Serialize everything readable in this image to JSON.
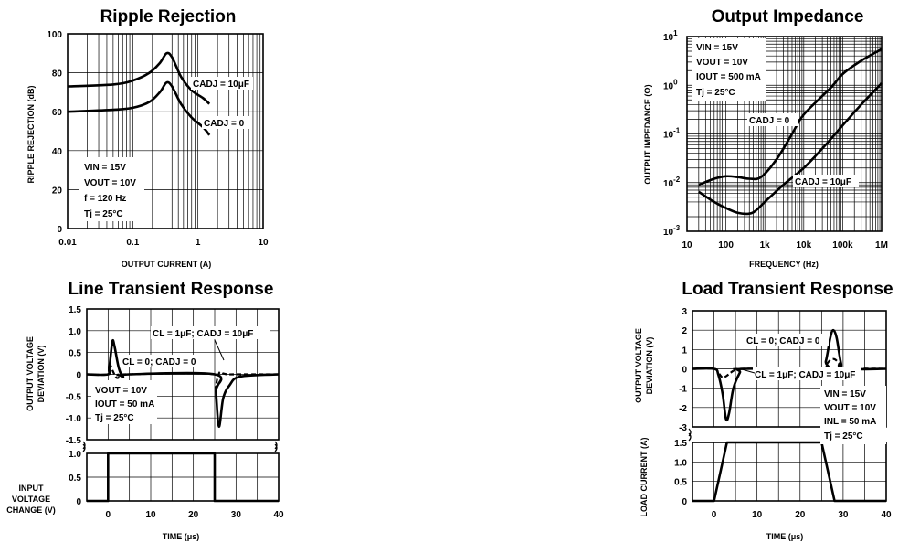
{
  "chart_data": [
    {
      "id": "ripple",
      "type": "line",
      "title": "Ripple Rejection",
      "xlabel": "OUTPUT CURRENT (A)",
      "ylabel": "RIPPLE REJECTION (dB)",
      "xscale": "log",
      "xlim": [
        0.01,
        10
      ],
      "ylim": [
        0,
        100
      ],
      "xticks": [
        "0.01",
        "0.1",
        "1",
        "10"
      ],
      "yticks": [
        "0",
        "20",
        "40",
        "60",
        "80",
        "100"
      ],
      "grid": true,
      "series": [
        {
          "name": "CADJ = 10μF",
          "x": [
            0.01,
            0.05,
            0.1,
            0.18,
            0.26,
            0.33,
            0.4,
            0.55,
            0.8,
            1.2,
            1.5
          ],
          "y": [
            73,
            74,
            76,
            80,
            85,
            90,
            88,
            78,
            71,
            67,
            64
          ]
        },
        {
          "name": "CADJ = 0",
          "x": [
            0.01,
            0.05,
            0.1,
            0.18,
            0.26,
            0.33,
            0.4,
            0.55,
            0.8,
            1.2,
            1.5
          ],
          "y": [
            60,
            61,
            62,
            65,
            70,
            75,
            73,
            64,
            57,
            52,
            48
          ]
        }
      ],
      "annotations": [
        "VIN = 15V",
        "VOUT = 10V",
        "f = 120 Hz",
        "Tj = 25°C"
      ]
    },
    {
      "id": "impedance",
      "type": "line",
      "title": "Output Impedance",
      "xlabel": "FREQUENCY (Hz)",
      "ylabel": "OUTPUT IMPEDANCE (Ω)",
      "xscale": "log",
      "yscale": "log",
      "xlim": [
        10,
        1000000
      ],
      "ylim": [
        0.001,
        10
      ],
      "xticks": [
        "10",
        "100",
        "1k",
        "10k",
        "100k",
        "1M"
      ],
      "yticks": [
        "10^-3",
        "10^-2",
        "10^-1",
        "10^0",
        "10^1"
      ],
      "grid": true,
      "series": [
        {
          "name": "CADJ = 0",
          "x": [
            20,
            50,
            100,
            200,
            400,
            800,
            2000,
            5000,
            10000,
            50000,
            100000,
            300000,
            1000000
          ],
          "y": [
            0.009,
            0.012,
            0.0135,
            0.013,
            0.012,
            0.013,
            0.03,
            0.1,
            0.25,
            0.9,
            1.7,
            3.2,
            5.5
          ]
        },
        {
          "name": "CADJ = 10μF",
          "x": [
            20,
            50,
            100,
            200,
            400,
            600,
            1000,
            3000,
            10000,
            30000,
            100000,
            300000,
            1000000
          ],
          "y": [
            0.0065,
            0.004,
            0.003,
            0.0024,
            0.0023,
            0.0027,
            0.004,
            0.009,
            0.02,
            0.05,
            0.15,
            0.4,
            1.1
          ]
        }
      ],
      "annotations": [
        "VIN = 15V",
        "VOUT = 10V",
        "IOUT = 500 mA",
        "Tj = 25°C"
      ]
    },
    {
      "id": "line_transient",
      "type": "line",
      "title": "Line Transient Response",
      "xlabel": "TIME (μs)",
      "ylabel_top": [
        "OUTPUT VOLTAGE",
        "DEVIATION (V)"
      ],
      "ylabel_bottom": [
        "INPUT",
        "VOLTAGE",
        "CHANGE (V)"
      ],
      "xlim": [
        -5,
        40
      ],
      "xticks": [
        "0",
        "10",
        "20",
        "30",
        "40"
      ],
      "ylim_top": [
        -1.5,
        1.5
      ],
      "yticks_top": [
        "-1.5",
        "-1.0",
        "-0.5",
        "0",
        "0.5",
        "1.0",
        "1.5"
      ],
      "ylim_bottom": [
        0,
        1.0
      ],
      "yticks_bottom": [
        "0",
        "0.5",
        "1.0"
      ],
      "grid": true,
      "series": [
        {
          "name": "CL = 1μF; CADJ = 10μF",
          "x": [
            -5,
            0,
            0.3,
            1,
            1.5,
            2.5,
            3.5,
            5,
            25,
            25.3,
            26,
            27,
            28.5,
            31,
            40
          ],
          "y": [
            0,
            0,
            0.15,
            0.75,
            0.65,
            0.15,
            -0.05,
            0,
            0,
            -0.4,
            -1.2,
            -0.55,
            -0.25,
            -0.05,
            0
          ]
        },
        {
          "name": "CL = 0; CADJ = 0",
          "x": [
            -5,
            0,
            0.2,
            0.6,
            1,
            2,
            3,
            4,
            25,
            25.2,
            25.6,
            26.2,
            27,
            28,
            30,
            40
          ],
          "y": [
            0,
            0,
            0.15,
            0.2,
            0.1,
            -0.08,
            -0.04,
            0,
            0,
            -0.3,
            -0.1,
            0.05,
            0.02,
            0,
            0,
            0
          ]
        },
        {
          "name": "input",
          "x": [
            -5,
            0,
            0,
            25,
            25,
            40
          ],
          "y": [
            0,
            0,
            1.0,
            1.0,
            0,
            0
          ]
        }
      ],
      "annotations": [
        "VOUT = 10V",
        "IOUT = 50 mA",
        "Tj = 25°C"
      ]
    },
    {
      "id": "load_transient",
      "type": "line",
      "title": "Load Transient Response",
      "xlabel": "TIME (μs)",
      "ylabel_top": [
        "OUTPUT VOLTAGE",
        "DEVIATION (V)"
      ],
      "ylabel_bottom": [
        "LOAD CURRENT (A)"
      ],
      "xlim": [
        -5,
        40
      ],
      "xticks": [
        "0",
        "10",
        "20",
        "30",
        "40"
      ],
      "ylim_top": [
        -3,
        3
      ],
      "yticks_top": [
        "-3",
        "-2",
        "-1",
        "0",
        "1",
        "2",
        "3"
      ],
      "ylim_bottom": [
        0,
        1.5
      ],
      "yticks_bottom": [
        "0",
        "0.5",
        "1.0",
        "1.5"
      ],
      "grid": true,
      "series": [
        {
          "name": "CL = 0; CADJ = 0",
          "x": [
            -5,
            0,
            1,
            2,
            2.8,
            3.5,
            4.5,
            6,
            7,
            25,
            26,
            27,
            27.7,
            28.5,
            29.5,
            30.5,
            40
          ],
          "y": [
            0,
            0,
            -0.3,
            -1.3,
            -2.6,
            -2.3,
            -1.0,
            -0.2,
            0,
            0,
            0.4,
            1.6,
            2.0,
            1.6,
            0.3,
            0,
            0
          ]
        },
        {
          "name": "CL = 1μF; CADJ = 10μF",
          "x": [
            -5,
            0,
            1,
            2,
            3,
            4.5,
            6,
            25,
            26,
            27,
            28,
            29,
            30,
            40
          ],
          "y": [
            0,
            0,
            -0.2,
            -0.45,
            -0.35,
            -0.1,
            0,
            0,
            0.2,
            0.45,
            0.5,
            0.3,
            0.05,
            0
          ]
        },
        {
          "name": "load",
          "x": [
            -5,
            0,
            3,
            25,
            28,
            40
          ],
          "y": [
            0,
            0,
            1.5,
            1.5,
            0,
            0
          ]
        }
      ],
      "annotations": [
        "VIN = 15V",
        "VOUT = 10V",
        "INL = 50 mA",
        "Tj = 25°C"
      ]
    }
  ],
  "labels": {
    "ripple_cadj10": "CADJ = 10μF",
    "ripple_cadj0": "CADJ = 0",
    "imp_cadj0": "CADJ = 0",
    "imp_cadj10": "CADJ = 10μF",
    "line_cl1": "CL = 1μF; CADJ = 10μF",
    "line_cl0": "CL = 0; CADJ = 0",
    "load_cl0": "CL = 0; CADJ = 0",
    "load_cl1": "CL = 1μF; CADJ = 10μF"
  }
}
